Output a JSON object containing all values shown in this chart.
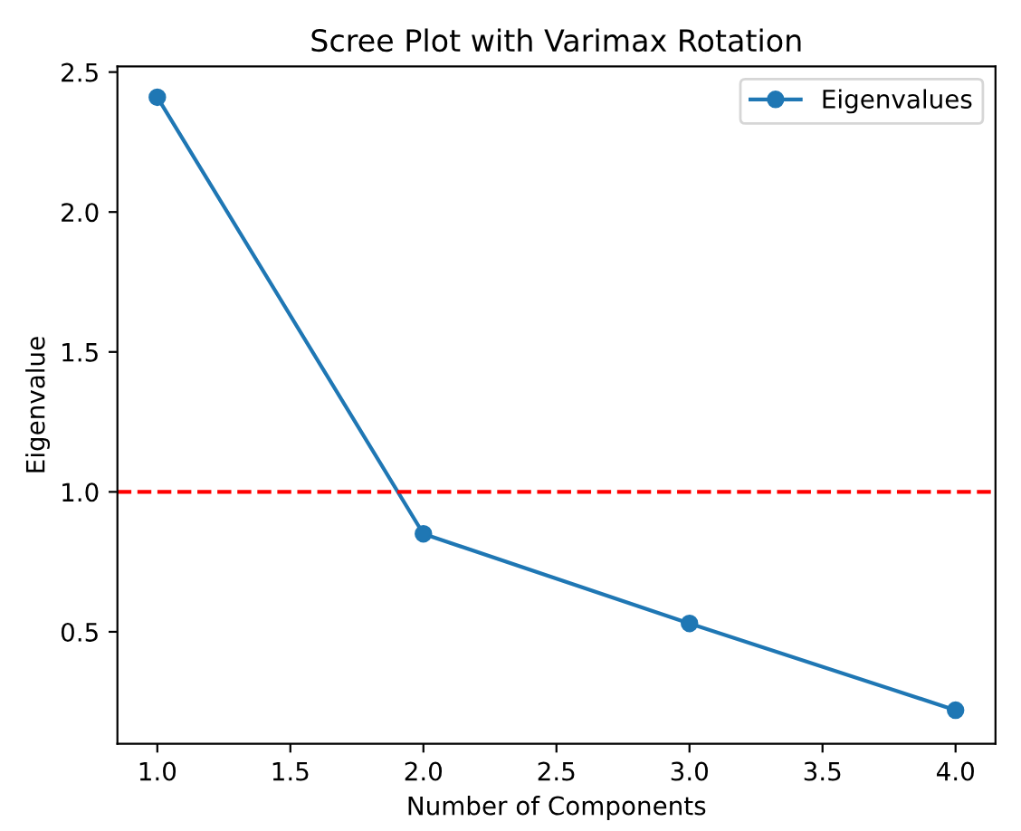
{
  "chart_data": {
    "type": "line",
    "title": "Scree Plot with Varimax Rotation",
    "xlabel": "Number of Components",
    "ylabel": "Eigenvalue",
    "x": [
      1,
      2,
      3,
      4
    ],
    "series": [
      {
        "name": "Eigenvalues",
        "color": "#1f77b4",
        "values": [
          2.41,
          0.85,
          0.53,
          0.22
        ]
      }
    ],
    "marker": "circle",
    "line_style": "solid",
    "legend": "top right",
    "grid": false,
    "xlim": [
      0.85,
      4.15
    ],
    "xticks": [
      {
        "value": 1,
        "label": "1.0"
      },
      {
        "value": 1.5,
        "label": "1.5"
      },
      {
        "value": 2,
        "label": "2.0"
      },
      {
        "value": 2.5,
        "label": "2.5"
      },
      {
        "value": 3,
        "label": "3.0"
      },
      {
        "value": 3.5,
        "label": "3.5"
      },
      {
        "value": 4,
        "label": "4.0"
      }
    ],
    "ylim": [
      0.1,
      2.52
    ],
    "yticks": [
      {
        "value": 0.5,
        "label": "0.5"
      },
      {
        "value": 1,
        "label": "1.0"
      },
      {
        "value": 1.5,
        "label": "1.5"
      },
      {
        "value": 2,
        "label": "2.0"
      },
      {
        "value": 2.5,
        "label": "2.5"
      }
    ],
    "ref_lines": [
      {
        "axis": "y",
        "value": 1,
        "color": "#ff0000",
        "line_style": "dashed"
      }
    ]
  }
}
